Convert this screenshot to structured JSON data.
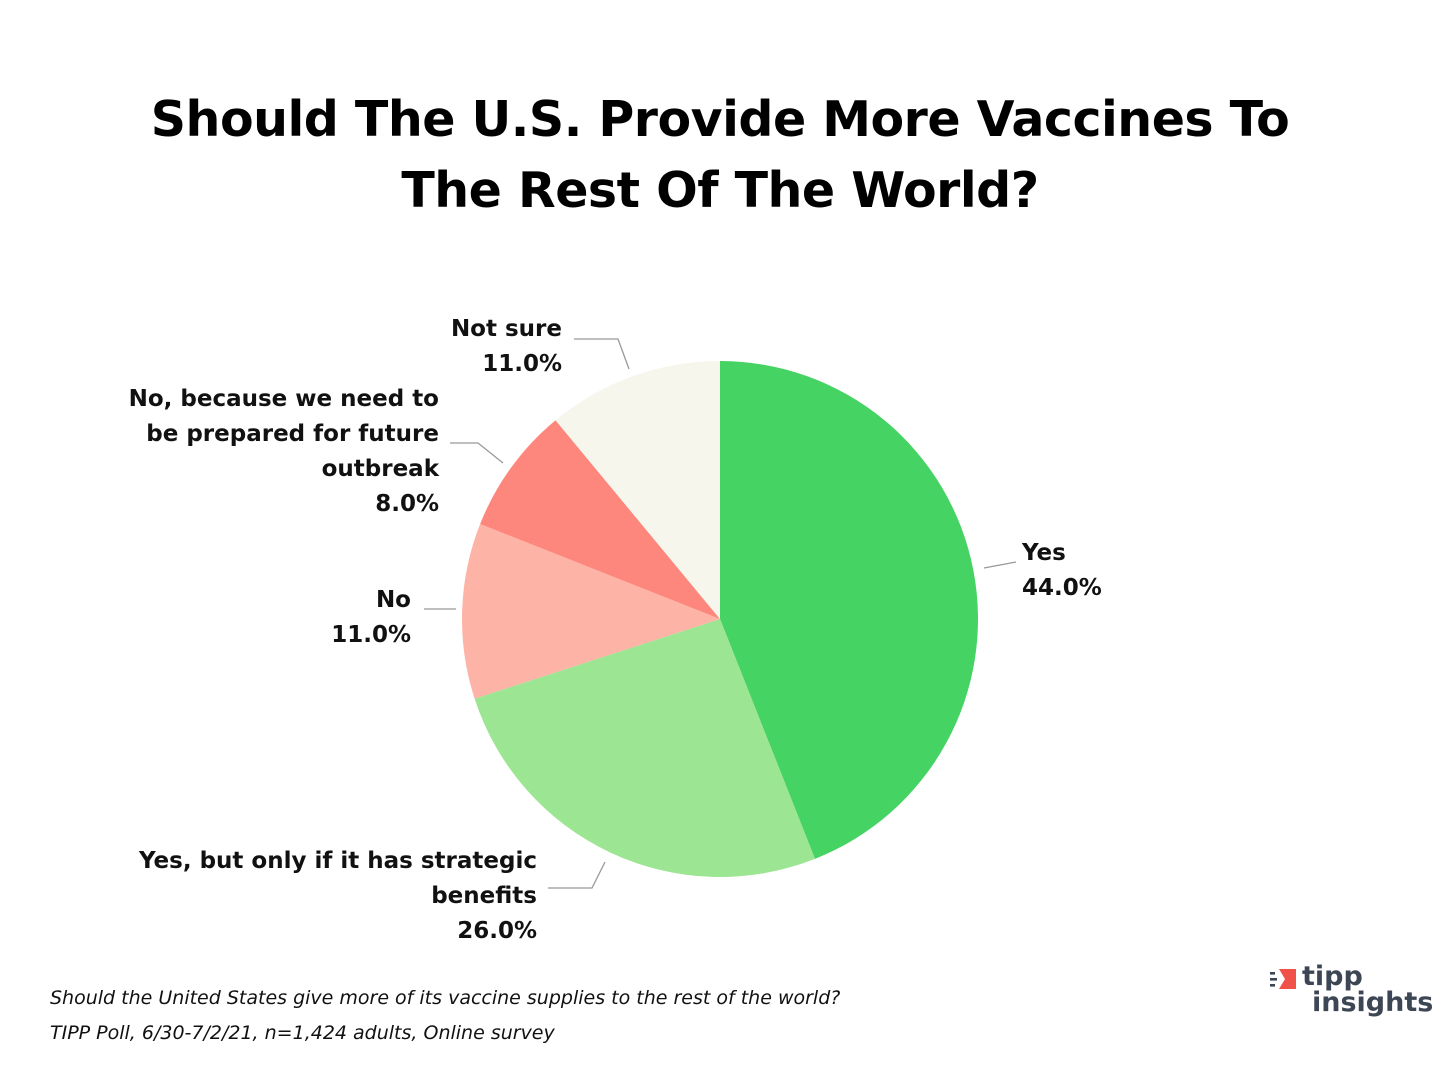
{
  "chart_data": {
    "type": "pie",
    "title_lines": [
      "Should The U.S. Provide More Vaccines To",
      "The Rest Of The World?"
    ],
    "slices": [
      {
        "name_lines": [
          "Yes"
        ],
        "value": 44.0,
        "value_label": "44.0%",
        "color": "#45d363"
      },
      {
        "name_lines": [
          "Yes, but only if it has strategic",
          "benefits"
        ],
        "value": 26.0,
        "value_label": "26.0%",
        "color": "#9ce592"
      },
      {
        "name_lines": [
          "No"
        ],
        "value": 11.0,
        "value_label": "11.0%",
        "color": "#fdb3a5"
      },
      {
        "name_lines": [
          "No, because we need to",
          "be prepared for future",
          "outbreak"
        ],
        "value": 8.0,
        "value_label": "8.0%",
        "color": "#fd877c"
      },
      {
        "name_lines": [
          "Not sure"
        ],
        "value": 11.0,
        "value_label": "11.0%",
        "color": "#f6f6ec"
      }
    ],
    "start": "12 o'clock, clockwise",
    "legend": "none (labels beside slices)"
  },
  "footnotes": [
    "Should the United States give more of its vaccine supplies to the rest of the world?",
    "TIPP Poll, 6/30-7/2/21, n=1,424 adults, Online survey"
  ],
  "logo": {
    "line1": "tipp",
    "line2": "insights",
    "mark_color": "#f0524a",
    "text_color": "#3d4654"
  }
}
